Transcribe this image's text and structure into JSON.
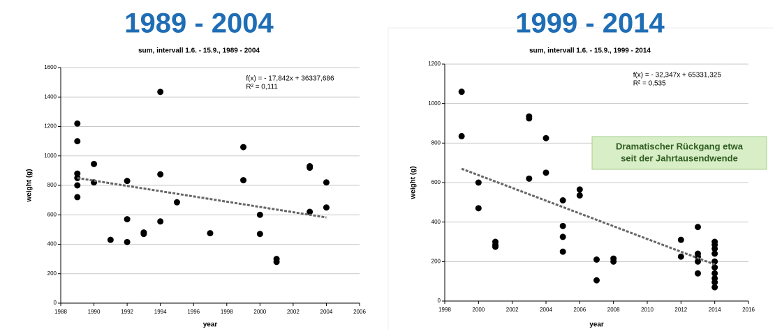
{
  "chart_data": [
    {
      "type": "scatter",
      "title": "1989 - 2004",
      "subtitle": "sum, intervall 1.6. - 15.9., 1989 - 2004",
      "x_label": "year",
      "y_label": "weight (g)",
      "equation": [
        "f(x) = - 17,842x + 36337,686",
        "R² = 0,111"
      ],
      "x": [
        1989,
        1989,
        1989,
        1989,
        1989,
        1989,
        1990,
        1990,
        1991,
        1992,
        1992,
        1992,
        1993,
        1993,
        1994,
        1994,
        1994,
        1995,
        1997,
        1999,
        1999,
        2000,
        2000,
        2001,
        2001,
        2003,
        2003,
        2003,
        2004,
        2004
      ],
      "values": [
        1220,
        1100,
        880,
        850,
        800,
        720,
        945,
        820,
        430,
        830,
        570,
        415,
        480,
        470,
        1435,
        875,
        555,
        685,
        475,
        1060,
        835,
        600,
        470,
        300,
        280,
        930,
        920,
        620,
        820,
        650
      ],
      "color": "#000000",
      "trendline": {
        "x": [
          1989,
          2004
        ],
        "values": [
          850,
          582
        ],
        "color": "#666666"
      },
      "xlim": [
        1988,
        2006
      ],
      "xticks": [
        1988,
        1990,
        1992,
        1994,
        1996,
        1998,
        2000,
        2002,
        2004,
        2006
      ],
      "ylim": [
        0,
        1600
      ],
      "yticks": [
        0,
        200,
        400,
        600,
        800,
        1000,
        1200,
        1400,
        1600
      ],
      "grid": true
    },
    {
      "type": "scatter",
      "title": "1999 - 2014",
      "subtitle": "sum, intervall 1.6. - 15.9., 1999 - 2014",
      "x_label": "year",
      "y_label": "weight (g)",
      "equation": [
        "f(x) = - 32,347x + 65331,325",
        "R² = 0,535"
      ],
      "annotation": [
        "Dramatischer Rückgang etwa",
        "seit der Jahrtausendwende"
      ],
      "x": [
        1999,
        1999,
        2000,
        2000,
        2001,
        2001,
        2001,
        2003,
        2003,
        2003,
        2004,
        2004,
        2005,
        2005,
        2005,
        2005,
        2006,
        2006,
        2007,
        2007,
        2008,
        2008,
        2012,
        2012,
        2013,
        2013,
        2013,
        2013,
        2013,
        2014,
        2014,
        2014,
        2014,
        2014,
        2014,
        2014,
        2014,
        2014,
        2014
      ],
      "values": [
        1060,
        835,
        600,
        470,
        300,
        285,
        275,
        935,
        925,
        620,
        825,
        650,
        510,
        380,
        325,
        250,
        565,
        535,
        210,
        105,
        215,
        200,
        310,
        225,
        375,
        240,
        225,
        200,
        140,
        300,
        285,
        265,
        240,
        200,
        170,
        140,
        115,
        95,
        70
      ],
      "color": "#000000",
      "trendline": {
        "x": [
          1999,
          2014
        ],
        "values": [
          670,
          185
        ],
        "color": "#666666"
      },
      "xlim": [
        1998,
        2016
      ],
      "xticks": [
        1998,
        2000,
        2002,
        2004,
        2006,
        2008,
        2010,
        2012,
        2014,
        2016
      ],
      "ylim": [
        0,
        1200
      ],
      "yticks": [
        0,
        200,
        400,
        600,
        800,
        1000,
        1200
      ],
      "grid": true
    }
  ]
}
